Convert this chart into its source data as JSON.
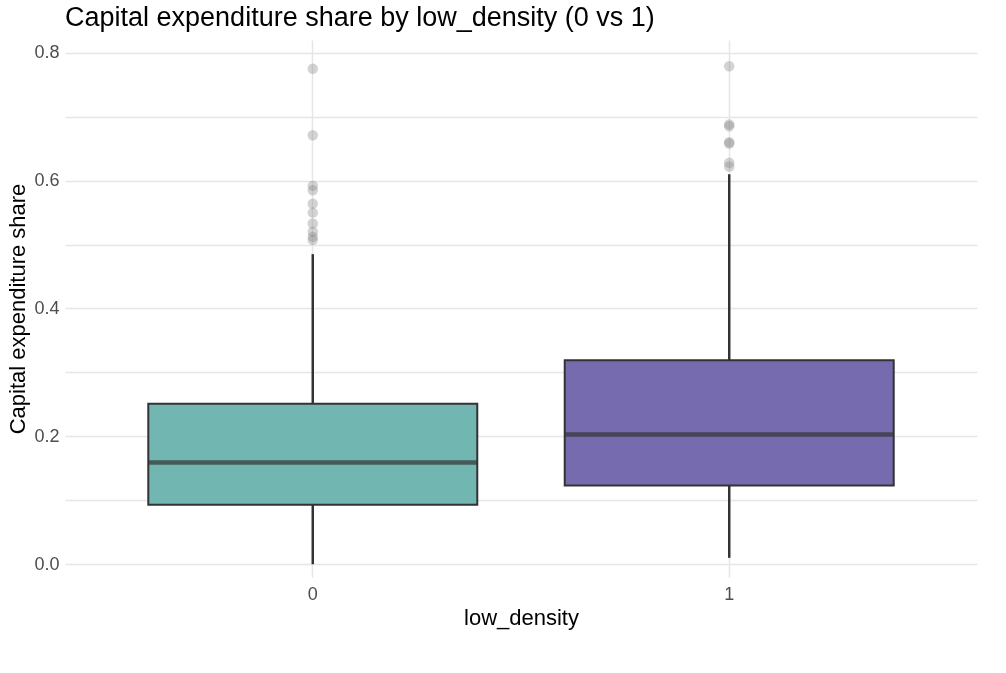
{
  "chart_data": {
    "type": "box",
    "title": "Capital expenditure share by low_density (0 vs 1)",
    "xlabel": "low_density",
    "ylabel": "Capital expenditure share",
    "categories": [
      "0",
      "1"
    ],
    "colors": [
      "#72b6b1",
      "#766bae"
    ],
    "boxes": [
      {
        "low": 0.0,
        "q1": 0.093,
        "median": 0.159,
        "q3": 0.251,
        "high": 0.485,
        "outliers": [
          0.775,
          0.671,
          0.592,
          0.585,
          0.564,
          0.55,
          0.533,
          0.52,
          0.512,
          0.507
        ]
      },
      {
        "low": 0.01,
        "q1": 0.123,
        "median": 0.203,
        "q3": 0.319,
        "high": 0.61,
        "outliers": [
          0.779,
          0.688,
          0.685,
          0.66,
          0.658,
          0.628,
          0.622
        ]
      }
    ],
    "ylim": [
      -0.02,
      0.82
    ],
    "yticks": [
      {
        "value": 0,
        "label": "0.0"
      },
      {
        "value": 0.1,
        "label": null
      },
      {
        "value": 0.2,
        "label": "0.2"
      },
      {
        "value": 0.3,
        "label": null
      },
      {
        "value": 0.4,
        "label": "0.4"
      },
      {
        "value": 0.5,
        "label": null
      },
      {
        "value": 0.6,
        "label": "0.6"
      },
      {
        "value": 0.7,
        "label": null
      },
      {
        "value": 0.8,
        "label": "0.8"
      }
    ],
    "grid": true
  }
}
